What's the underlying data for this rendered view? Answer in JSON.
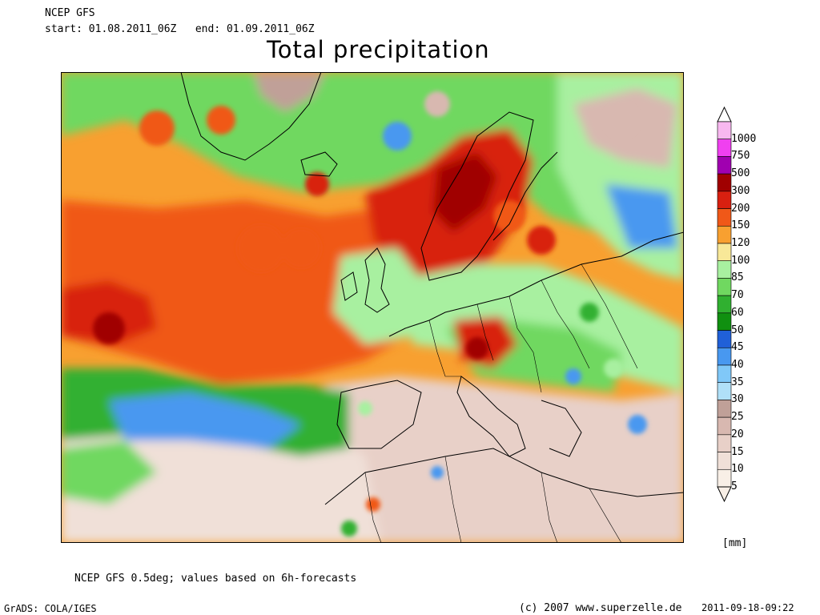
{
  "header": {
    "model": "NCEP GFS",
    "period": "start: 01.08.2011_06Z   end: 01.09.2011_06Z",
    "title": "Total precipitation"
  },
  "footer": {
    "note": "NCEP GFS 0.5deg; values based on 6h-forecasts",
    "grads": "GrADS: COLA/IGES",
    "copyright": "(c) 2007 www.superzelle.de",
    "timestamp": "2011-09-18-09:22"
  },
  "legend": {
    "unit": "[mm]",
    "levels": [
      "1000",
      "750",
      "500",
      "300",
      "200",
      "150",
      "120",
      "100",
      "85",
      "70",
      "60",
      "50",
      "45",
      "40",
      "35",
      "30",
      "25",
      "20",
      "15",
      "10",
      "5"
    ],
    "colors": [
      "#f8b8f0",
      "#f040f0",
      "#a000b0",
      "#a00000",
      "#d82010",
      "#f05818",
      "#f8a030",
      "#f8e898",
      "#a8f0a0",
      "#70d860",
      "#30b030",
      "#109010",
      "#2060d8",
      "#4898f0",
      "#80c8f8",
      "#b0e0f8",
      "#c0a098",
      "#d8b8b0",
      "#e8d0c8",
      "#f0e0d8",
      "#f8efe6"
    ]
  },
  "map_colors": {
    "ocean_base": "#f08030",
    "land_base": "#e8d0c8",
    "frame": "#000000",
    "border": "#000000"
  }
}
